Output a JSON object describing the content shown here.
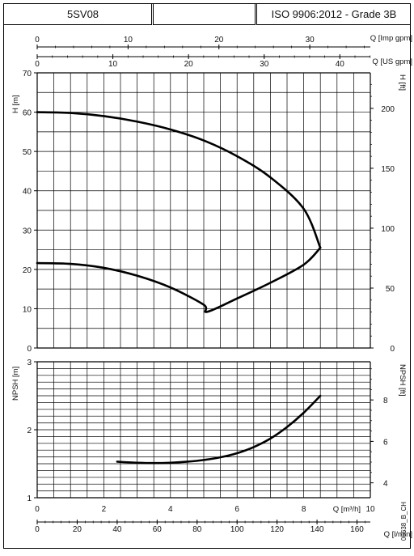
{
  "header": {
    "model": "5SV08",
    "standard": "ISO 9906:2012 - Grade 3B"
  },
  "corner_code": "06638_B_CH",
  "chart_data": [
    {
      "type": "line",
      "title": "",
      "x": {
        "label": "Q [m³/h]",
        "lim": [
          0,
          10
        ]
      },
      "x_alt_axes": [
        {
          "label": "Q [Imp gpm]",
          "ticks": [
            0,
            10,
            20,
            30
          ],
          "factor_from_m3h": 3.6662
        },
        {
          "label": "Q [US gpm]",
          "ticks": [
            0,
            10,
            20,
            30,
            40
          ],
          "factor_from_m3h": 4.4029
        }
      ],
      "ylabel": "H [m]",
      "ylim": [
        0,
        70
      ],
      "yticks": [
        0,
        10,
        20,
        30,
        40,
        50,
        60,
        70
      ],
      "y_right": {
        "label": "H [ft]",
        "ticks": [
          0,
          50,
          100,
          150,
          200
        ],
        "factor": 3.28084
      },
      "grid": true,
      "series": [
        {
          "x": [
            0,
            1,
            2,
            3,
            4,
            5,
            6,
            7,
            8,
            8.5
          ],
          "y": [
            60.0,
            59.8,
            59.0,
            57.6,
            55.6,
            52.8,
            48.8,
            43.4,
            35.4,
            25.5
          ]
        },
        {
          "x": [
            0,
            1,
            2,
            3,
            4,
            5,
            5.1,
            6,
            7,
            8,
            8.5
          ],
          "y": [
            21.6,
            21.4,
            20.4,
            18.4,
            15.4,
            11.0,
            9.2,
            12.6,
            16.6,
            21.2,
            25.5
          ]
        }
      ]
    },
    {
      "type": "line",
      "title": "",
      "x": {
        "label": "Q [m³/h]",
        "lim": [
          0,
          10
        ],
        "ticks": [
          0,
          2,
          4,
          6,
          8,
          10
        ]
      },
      "x_alt_axes": [
        {
          "label": "Q [l/min]",
          "ticks": [
            0,
            20,
            40,
            60,
            80,
            100,
            120,
            140,
            160
          ],
          "factor_from_m3h": 16.6667
        }
      ],
      "ylabel": "NPSH [m]",
      "ylim": [
        1,
        3
      ],
      "yticks": [
        1,
        2,
        3
      ],
      "y_right": {
        "label": "NPSH [ft]",
        "ticks": [
          4,
          6,
          8
        ],
        "factor": 3.28084
      },
      "grid": true,
      "series": [
        {
          "x": [
            2.4,
            3.0,
            3.5,
            4.0,
            4.5,
            5.0,
            5.5,
            6.0,
            6.5,
            7.0,
            7.5,
            8.0,
            8.5
          ],
          "y": [
            1.53,
            1.515,
            1.51,
            1.515,
            1.53,
            1.555,
            1.595,
            1.655,
            1.745,
            1.87,
            2.04,
            2.25,
            2.5
          ]
        }
      ]
    }
  ]
}
